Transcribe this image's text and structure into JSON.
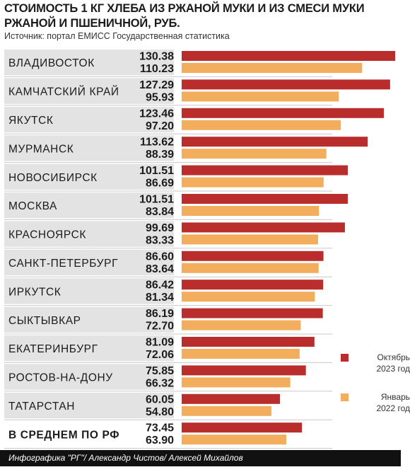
{
  "title": "СТОИМОСТЬ 1 КГ ХЛЕБА ИЗ РЖАНОЙ МУКИ И ИЗ СМЕСИ МУКИ РЖАНОЙ И ПШЕНИЧНОЙ, РУБ.",
  "source": "Источник: портал ЕМИСС Государственная статистика",
  "footer": "Инфографика \"РГ\"/ Александр Чистов/ Алексей Михайлов",
  "colors": {
    "october": "#b92d2d",
    "january": "#f2ae5c",
    "row_band": "#e3e3e3",
    "divider": "#c9c9c9"
  },
  "legend": [
    {
      "line1": "Октябрь",
      "line2": "2023 год",
      "color": "#b92d2d"
    },
    {
      "line1": "Январь",
      "line2": "2022 год",
      "color": "#f2ae5c"
    }
  ],
  "chart_data": {
    "type": "bar",
    "orientation": "horizontal",
    "title": "СТОИМОСТЬ 1 КГ ХЛЕБА ИЗ РЖАНОЙ МУКИ И ИЗ СМЕСИ МУКИ РЖАНОЙ И ПШЕНИЧНОЙ, РУБ.",
    "categories": [
      "ВЛАДИВОСТОК",
      "КАМЧАТСКИЙ КРАЙ",
      "ЯКУТСК",
      "МУРМАНСК",
      "НОВОСИБИРСК",
      "МОСКВА",
      "КРАСНОЯРСК",
      "САНКТ-ПЕТЕРБУРГ",
      "ИРКУТСК",
      "СЫКТЫВКАР",
      "ЕКАТЕРИНБУРГ",
      "РОСТОВ-НА-ДОНУ",
      "ТАТАРСТАН",
      "В СРЕДНЕМ ПО РФ"
    ],
    "series": [
      {
        "name": "Октябрь 2023 год",
        "values": [
          130.38,
          127.29,
          123.46,
          113.62,
          101.51,
          101.51,
          99.69,
          86.6,
          86.42,
          86.19,
          81.09,
          75.85,
          60.05,
          73.45
        ]
      },
      {
        "name": "Январь 2022 год",
        "values": [
          110.23,
          95.93,
          97.2,
          88.39,
          86.69,
          83.84,
          83.33,
          83.64,
          81.34,
          72.7,
          72.06,
          66.32,
          54.8,
          63.9
        ]
      }
    ],
    "value_labels": [
      [
        "130.38",
        "127.29",
        "123.46",
        "113.62",
        "101.51",
        "101.51",
        "99.69",
        "86.60",
        "86.42",
        "86.19",
        "81.09",
        "75.85",
        "60.05",
        "73.45"
      ],
      [
        "110.23",
        "95.93",
        "97.20",
        "88.39",
        "86.69",
        "83.84",
        "83.33",
        "83.64",
        "81.34",
        "72.70",
        "72.06",
        "66.32",
        "54.80",
        "63.90"
      ]
    ],
    "xlim": [
      0,
      130.38
    ],
    "legend_position": "bottom-right",
    "grid": false
  }
}
